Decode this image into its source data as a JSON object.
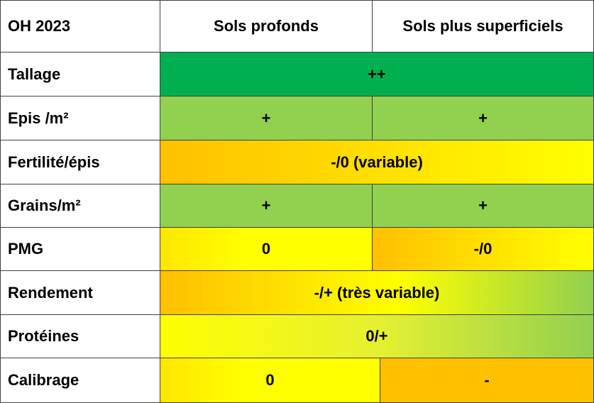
{
  "header": {
    "title": "OH 2023",
    "columns": [
      "Sols profonds",
      "Sols plus superficiels"
    ]
  },
  "rows": [
    {
      "label": "Tallage",
      "cells": [
        "++"
      ]
    },
    {
      "label": "Epis /m²",
      "cells": [
        "+",
        "+"
      ]
    },
    {
      "label": "Fertilité/épis",
      "cells": [
        "-/0 (variable)"
      ]
    },
    {
      "label": "Grains/m²",
      "cells": [
        "+",
        "+"
      ]
    },
    {
      "label": "PMG",
      "cells": [
        "0",
        "-/0"
      ]
    },
    {
      "label": "Rendement",
      "cells": [
        "-/+ (très variable)"
      ]
    },
    {
      "label": "Protéines",
      "cells": [
        "0/+"
      ]
    },
    {
      "label": "Calibrage",
      "cells": [
        "0",
        "-"
      ]
    }
  ]
}
